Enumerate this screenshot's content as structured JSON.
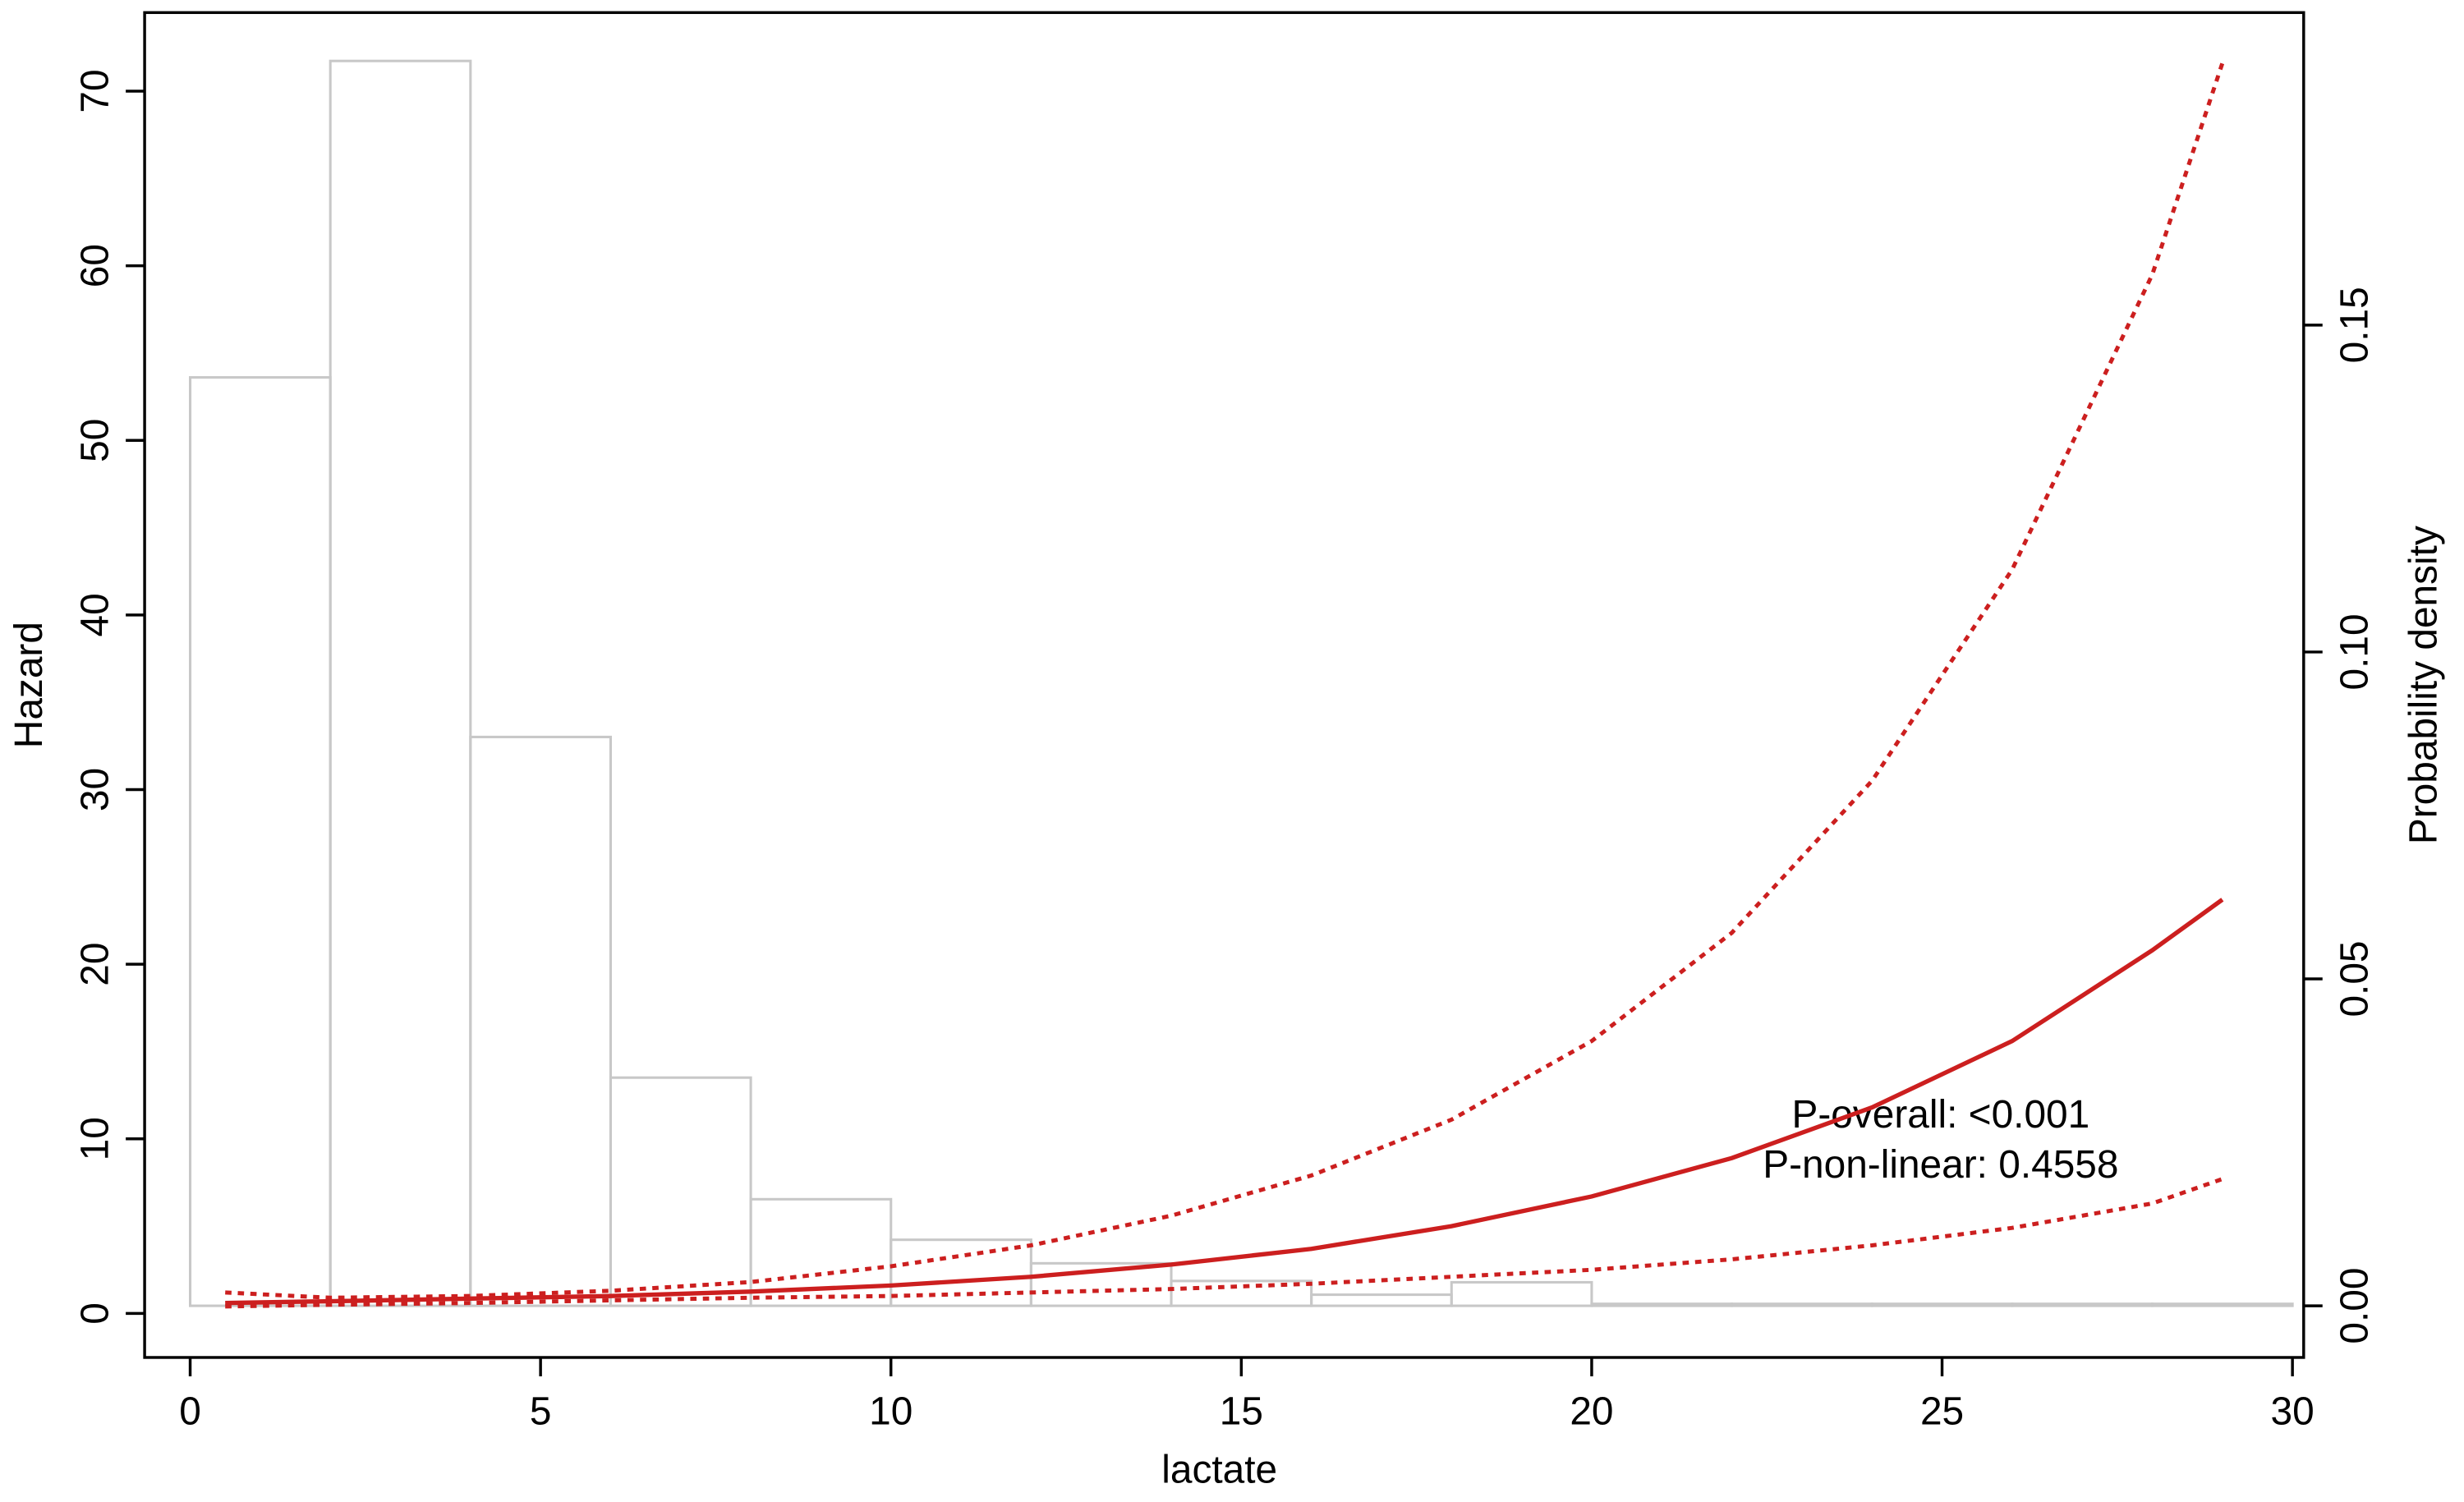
{
  "chart_data": {
    "type": "line",
    "xlabel": "lactate",
    "ylabel": "Hazard",
    "y2label": "Probability density",
    "annotations": [
      "P-overall: <0.001",
      "P-non-linear: 0.4558"
    ],
    "xlim": [
      -0.65,
      30.16
    ],
    "ylim": [
      -2.52,
      74.5
    ],
    "y2lim": [
      -0.0079,
      0.1978
    ],
    "xticks": [
      0,
      5,
      10,
      15,
      20,
      25,
      30
    ],
    "yticks": [
      0,
      10,
      20,
      30,
      40,
      50,
      60,
      70
    ],
    "y2ticks": [
      {
        "value": 0,
        "label": "0.00"
      },
      {
        "value": 0.05,
        "label": "0.05"
      },
      {
        "value": 0.1,
        "label": "0.10"
      },
      {
        "value": 0.15,
        "label": "0.15"
      }
    ],
    "x": [
      0.5,
      2,
      4,
      6,
      8,
      10,
      12,
      14,
      16,
      18,
      20,
      22,
      24,
      26,
      28,
      29
    ],
    "series": [
      {
        "color": "#cc1f1f",
        "style": "solid",
        "values": [
          0.6,
          0.7,
          0.85,
          1.0,
          1.25,
          1.6,
          2.1,
          2.8,
          3.7,
          5.0,
          6.7,
          8.9,
          11.8,
          15.6,
          20.8,
          23.7
        ]
      },
      {
        "color": "#cc1f1f",
        "style": "dashed",
        "values": [
          1.2,
          0.9,
          1.0,
          1.3,
          1.8,
          2.7,
          3.9,
          5.6,
          7.9,
          11.1,
          15.6,
          21.8,
          30.5,
          42.6,
          59.5,
          71.6
        ]
      },
      {
        "color": "#cc1f1f",
        "style": "dashed",
        "values": [
          0.4,
          0.5,
          0.6,
          0.75,
          0.9,
          1.0,
          1.2,
          1.4,
          1.7,
          2.1,
          2.5,
          3.1,
          3.9,
          4.9,
          6.3,
          7.7
        ]
      }
    ],
    "histogram": {
      "axis": "y2",
      "color": "#c8c8c8",
      "bins": [
        0,
        2,
        4,
        6,
        8,
        10,
        12,
        14,
        16,
        18,
        20,
        22,
        24,
        26,
        28,
        30
      ],
      "values": [
        0.142,
        0.1904,
        0.087,
        0.0349,
        0.0163,
        0.0101,
        0.0065,
        0.0038,
        0.0017,
        0.0036,
        0.0003,
        0.0003,
        0.0003,
        0.0003,
        0.0003
      ]
    }
  }
}
